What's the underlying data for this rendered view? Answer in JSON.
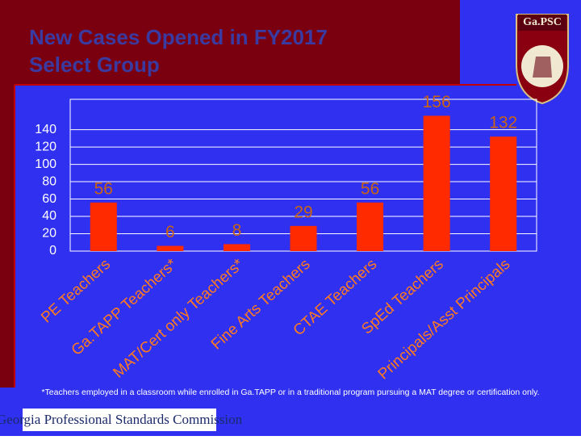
{
  "chart_data": {
    "type": "bar",
    "title_lines": [
      "New Cases Opened in FY2017",
      "Select Group"
    ],
    "categories": [
      "PE Teachers",
      "Ga.TAPP Teachers*",
      "MAT/Cert only Teachers*",
      "Fine Arts Teachers",
      "CTAE Teachers",
      "SpEd Teachers",
      "Principals/Asst Principals"
    ],
    "values": [
      56,
      6,
      8,
      29,
      56,
      156,
      132
    ],
    "color": "#ff2a00",
    "ylim": [
      0,
      175
    ],
    "yticks": [
      0,
      20,
      40,
      60,
      80,
      100,
      120,
      140
    ],
    "grid": true,
    "footnote": "*Teachers employed in a classroom while enrolled in Ga.TAPP or in a traditional program pursuing a MAT degree or certification only.",
    "logo_text": "Ga.PSC",
    "organization": "Georgia Professional Standards Commission"
  }
}
